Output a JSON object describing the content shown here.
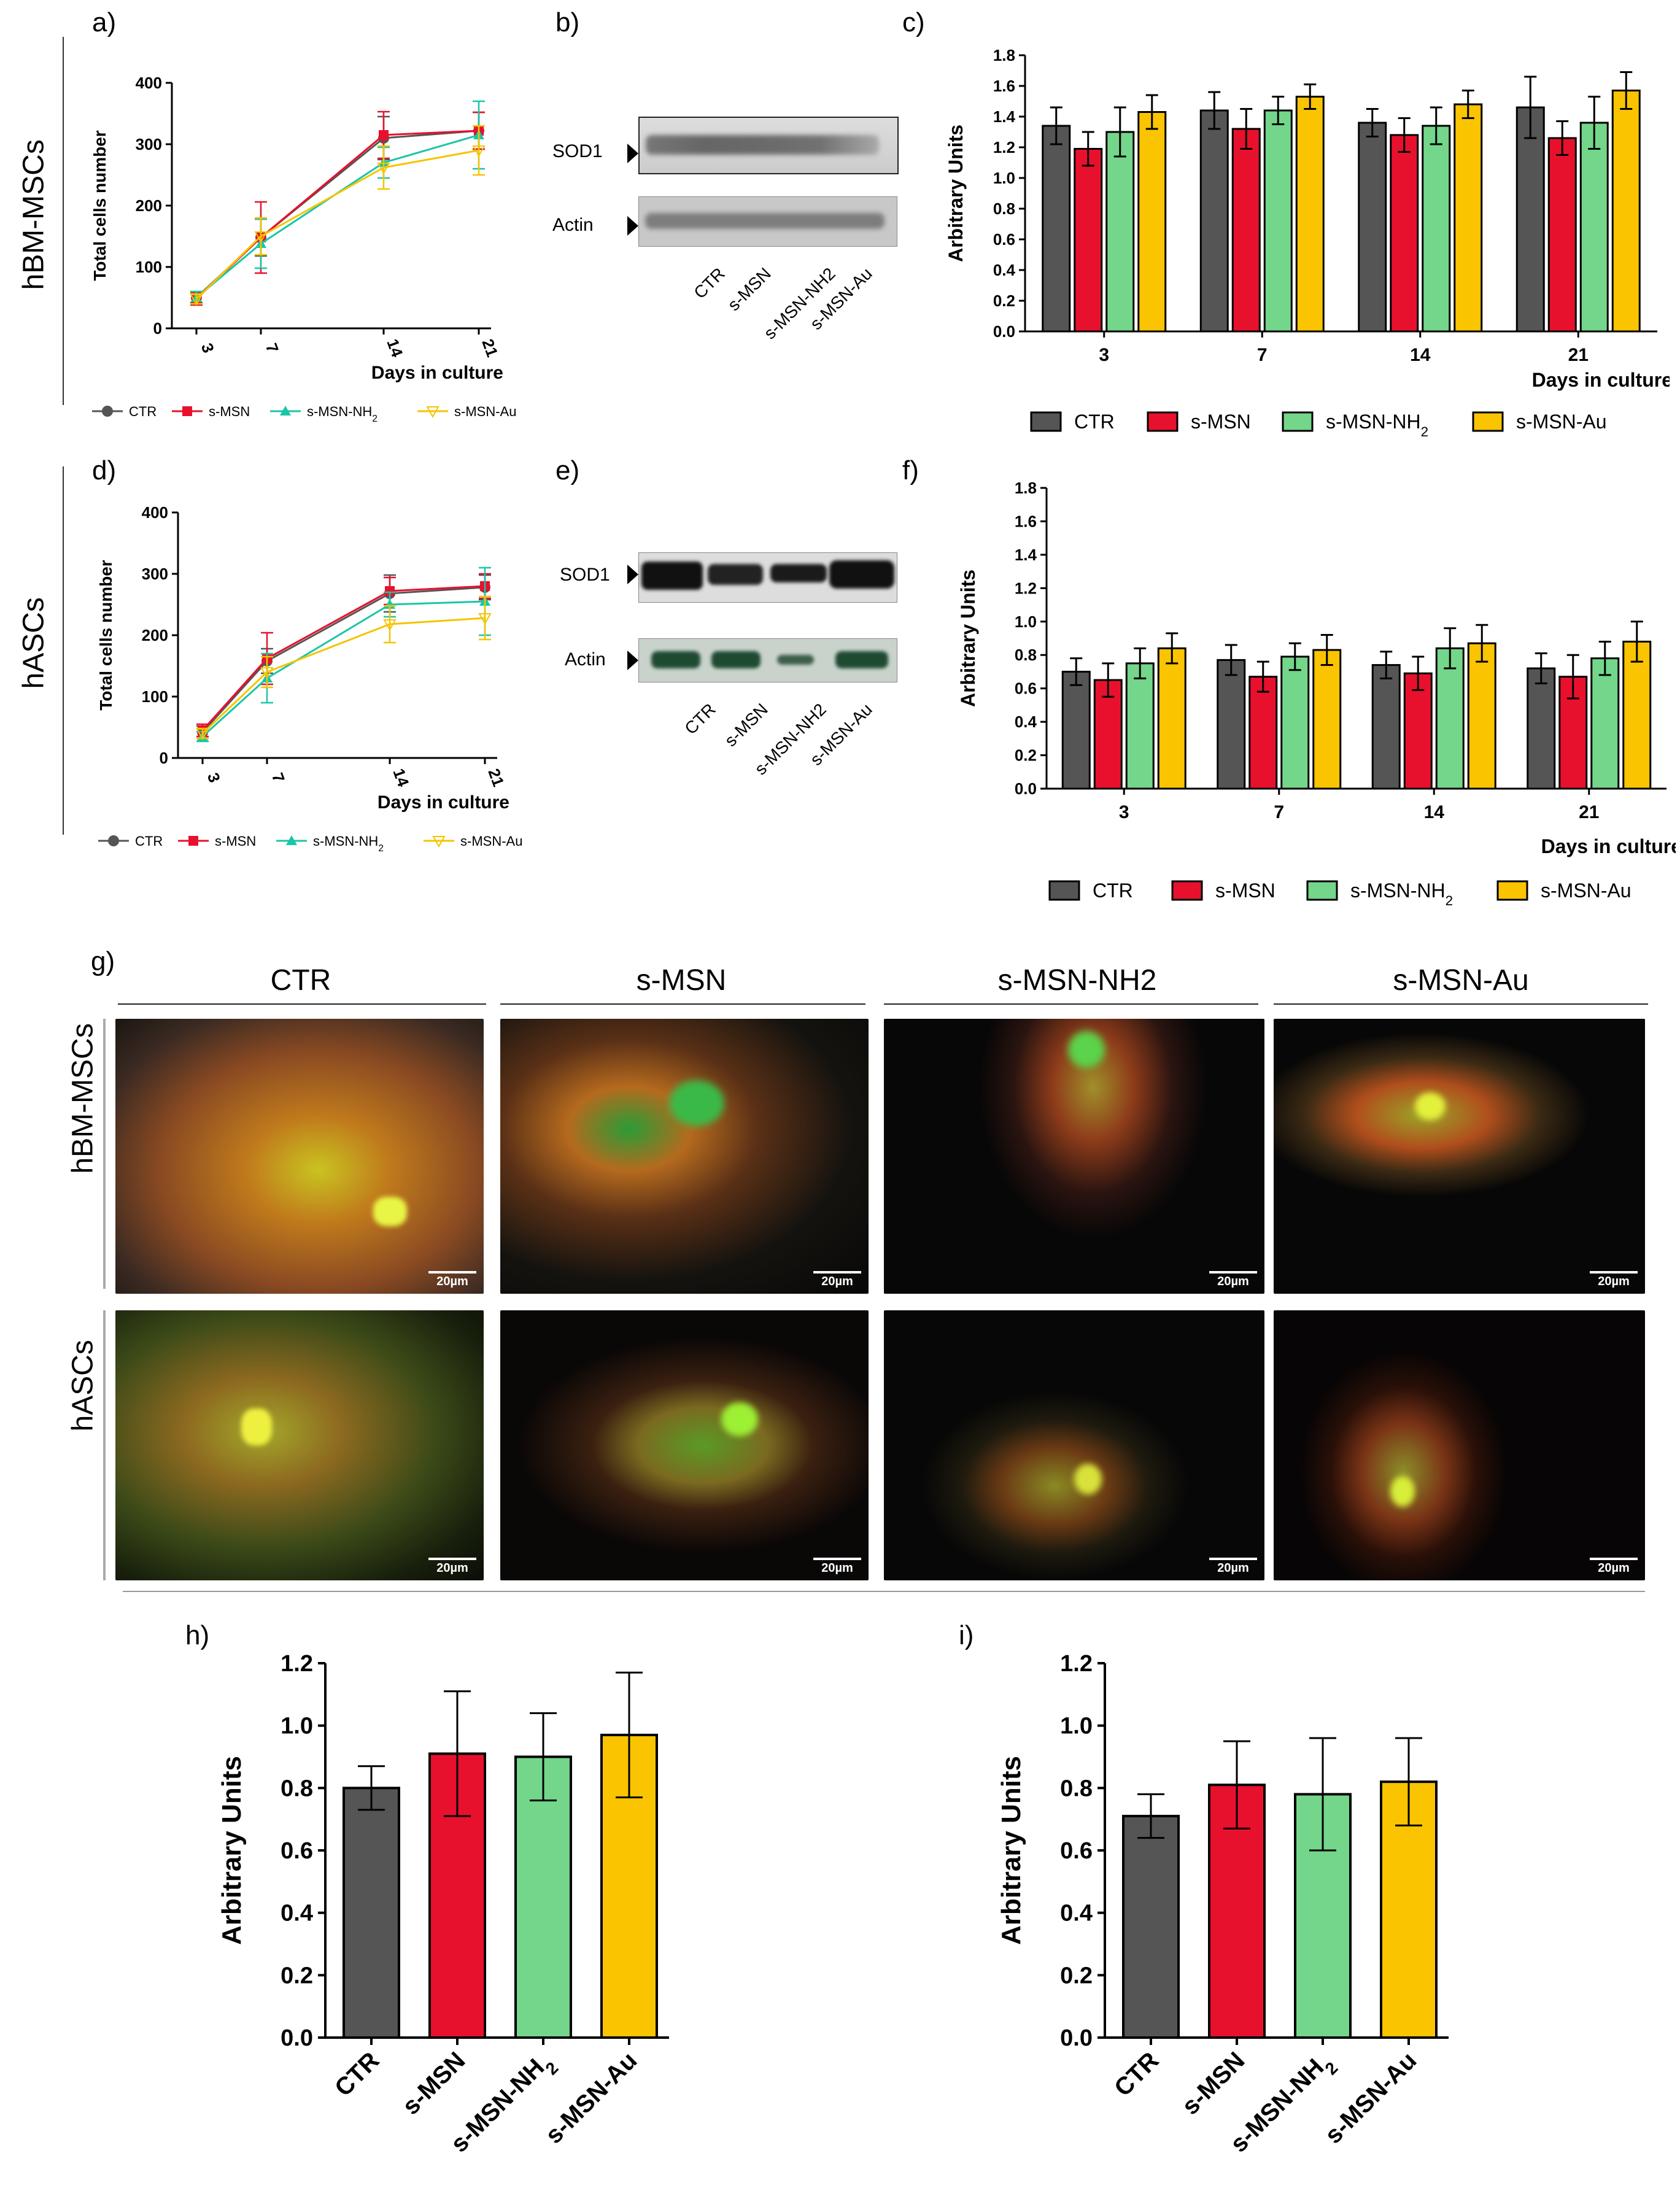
{
  "panel_labels": {
    "a": "a)",
    "b": "b)",
    "c": "c)",
    "d": "d)",
    "e": "e)",
    "f": "f)",
    "g": "g)",
    "h": "h)",
    "i": "i)"
  },
  "row_labels": {
    "top": "hBM-MSCs",
    "bottom": "hASCs"
  },
  "legend_groups": [
    "CTR",
    "s-MSN",
    "s-MSN-NH2",
    "s-MSN-Au"
  ],
  "colors": {
    "CTR": "#555555",
    "s-MSN": "#e8112d",
    "s-MSN-NH2": "#74d68a",
    "s-MSN-Au": "#fac400",
    "line_nh2": "#19c6a7",
    "line_au": "#f5c400"
  },
  "blots": {
    "b": {
      "bands": [
        "SOD1",
        "Actin"
      ],
      "lanes": [
        "CTR",
        "s-MSN",
        "s-MSN-NH2",
        "s-MSN-Au"
      ]
    },
    "e": {
      "bands": [
        "SOD1",
        "Actin"
      ],
      "lanes": [
        "CTR",
        "s-MSN",
        "s-MSN-NH2",
        "s-MSN-Au"
      ]
    }
  },
  "microscopy": {
    "title": "g)",
    "columns": [
      "CTR",
      "s-MSN",
      "s-MSN-NH2",
      "s-MSN-Au"
    ],
    "rows": [
      "hBM-MSCs",
      "hASCs"
    ],
    "scale_bar": "20µm"
  },
  "chart_data": [
    {
      "id": "a",
      "type": "line",
      "ylabel": "Total cells number",
      "xlabel": "Days in culture",
      "x": [
        3,
        7,
        14,
        21
      ],
      "ylim": [
        0,
        400
      ],
      "yticks": [
        0,
        100,
        200,
        300,
        400
      ],
      "series": [
        {
          "name": "CTR",
          "values": [
            50,
            148,
            310,
            322
          ],
          "err": [
            8,
            30,
            35,
            30
          ]
        },
        {
          "name": "s-MSN",
          "values": [
            48,
            148,
            315,
            322
          ],
          "err": [
            10,
            58,
            38,
            30
          ]
        },
        {
          "name": "s-MSN-NH2",
          "values": [
            50,
            138,
            270,
            315
          ],
          "err": [
            10,
            40,
            25,
            55
          ]
        },
        {
          "name": "s-MSN-Au",
          "values": [
            48,
            150,
            262,
            290
          ],
          "err": [
            8,
            30,
            35,
            40
          ]
        }
      ]
    },
    {
      "id": "c",
      "type": "bar",
      "ylabel": "Arbitrary Units",
      "xlabel": "Days in culture",
      "categories": [
        "3",
        "7",
        "14",
        "21"
      ],
      "ylim": [
        0,
        1.8
      ],
      "yticks": [
        "0.0",
        "0.2",
        "0.4",
        "0.6",
        "0.8",
        "1.0",
        "1.2",
        "1.4",
        "1.6",
        "1.8"
      ],
      "series": [
        {
          "name": "CTR",
          "values": [
            1.34,
            1.44,
            1.36,
            1.46
          ],
          "err": [
            0.12,
            0.12,
            0.09,
            0.2
          ]
        },
        {
          "name": "s-MSN",
          "values": [
            1.19,
            1.32,
            1.28,
            1.26
          ],
          "err": [
            0.11,
            0.13,
            0.11,
            0.11
          ]
        },
        {
          "name": "s-MSN-NH2",
          "values": [
            1.3,
            1.44,
            1.34,
            1.36
          ],
          "err": [
            0.16,
            0.09,
            0.12,
            0.17
          ]
        },
        {
          "name": "s-MSN-Au",
          "values": [
            1.43,
            1.53,
            1.48,
            1.57
          ],
          "err": [
            0.11,
            0.08,
            0.09,
            0.12
          ]
        }
      ]
    },
    {
      "id": "d",
      "type": "line",
      "ylabel": "Total cells number",
      "xlabel": "Days in culture",
      "x": [
        3,
        7,
        14,
        21
      ],
      "ylim": [
        0,
        400
      ],
      "yticks": [
        0,
        100,
        200,
        300,
        400
      ],
      "series": [
        {
          "name": "CTR",
          "values": [
            42,
            158,
            268,
            278
          ],
          "err": [
            10,
            20,
            30,
            20
          ]
        },
        {
          "name": "s-MSN",
          "values": [
            45,
            162,
            272,
            280
          ],
          "err": [
            10,
            42,
            22,
            20
          ]
        },
        {
          "name": "s-MSN-NH2",
          "values": [
            35,
            130,
            250,
            255
          ],
          "err": [
            8,
            40,
            20,
            55
          ]
        },
        {
          "name": "s-MSN-Au",
          "values": [
            40,
            140,
            218,
            228
          ],
          "err": [
            8,
            25,
            30,
            35
          ]
        }
      ]
    },
    {
      "id": "f",
      "type": "bar",
      "ylabel": "Arbitrary Units",
      "xlabel": "Days in culture",
      "categories": [
        "3",
        "7",
        "14",
        "21"
      ],
      "ylim": [
        0,
        1.8
      ],
      "yticks": [
        "0.0",
        "0.2",
        "0.4",
        "0.6",
        "0.8",
        "1.0",
        "1.2",
        "1.4",
        "1.6",
        "1.8"
      ],
      "series": [
        {
          "name": "CTR",
          "values": [
            0.7,
            0.77,
            0.74,
            0.72
          ],
          "err": [
            0.08,
            0.09,
            0.08,
            0.09
          ]
        },
        {
          "name": "s-MSN",
          "values": [
            0.65,
            0.67,
            0.69,
            0.67
          ],
          "err": [
            0.1,
            0.09,
            0.1,
            0.13
          ]
        },
        {
          "name": "s-MSN-NH2",
          "values": [
            0.75,
            0.79,
            0.84,
            0.78
          ],
          "err": [
            0.09,
            0.08,
            0.12,
            0.1
          ]
        },
        {
          "name": "s-MSN-Au",
          "values": [
            0.84,
            0.83,
            0.87,
            0.88
          ],
          "err": [
            0.09,
            0.09,
            0.11,
            0.12
          ]
        }
      ]
    },
    {
      "id": "h",
      "type": "bar",
      "ylabel": "Arbitrary Units",
      "categories": [
        "CTR",
        "s-MSN",
        "s-MSN-NH2",
        "s-MSN-Au"
      ],
      "ylim": [
        0,
        1.2
      ],
      "yticks": [
        "0.0",
        "0.2",
        "0.4",
        "0.6",
        "0.8",
        "1.0",
        "1.2"
      ],
      "values": [
        0.8,
        0.91,
        0.9,
        0.97
      ],
      "err": [
        0.07,
        0.2,
        0.14,
        0.2
      ]
    },
    {
      "id": "i",
      "type": "bar",
      "ylabel": "Arbitrary Units",
      "categories": [
        "CTR",
        "s-MSN",
        "s-MSN-NH2",
        "s-MSN-Au"
      ],
      "ylim": [
        0,
        1.2
      ],
      "yticks": [
        "0.0",
        "0.2",
        "0.4",
        "0.6",
        "0.8",
        "1.0",
        "1.2"
      ],
      "values": [
        0.71,
        0.81,
        0.78,
        0.82
      ],
      "err": [
        0.07,
        0.14,
        0.18,
        0.14
      ]
    }
  ]
}
